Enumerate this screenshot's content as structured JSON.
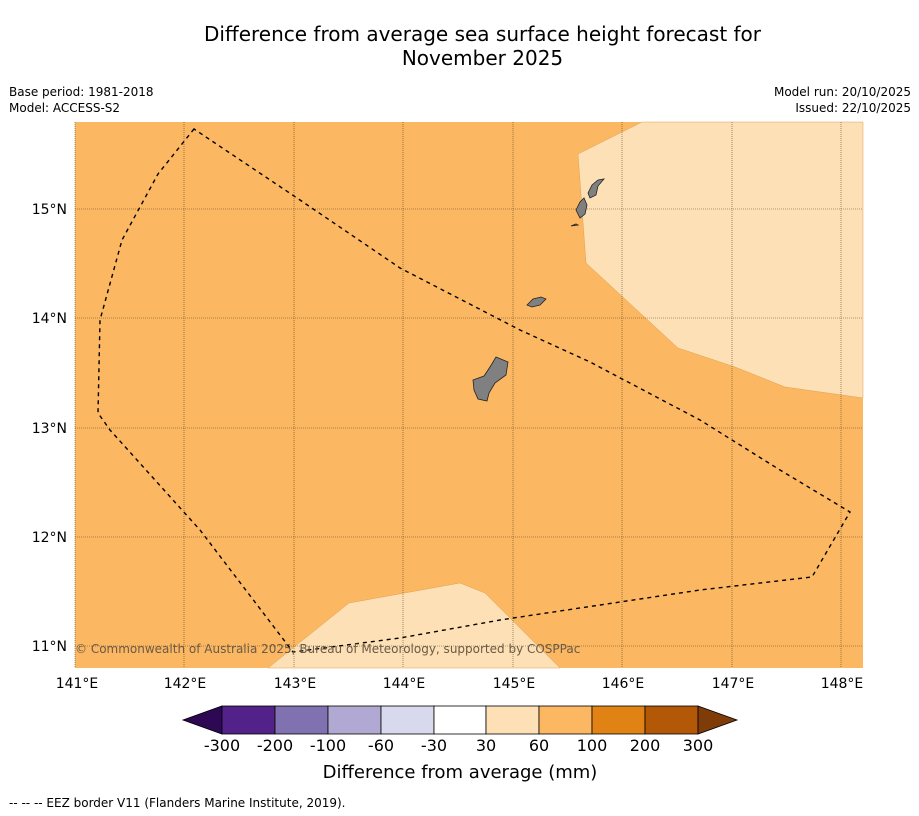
{
  "title_line1": "Difference from average sea surface height forecast for",
  "title_line2": "November 2025",
  "meta": {
    "base_period": "Base period: 1981-2018",
    "model": "Model: ACCESS-S2",
    "model_run": "Model run: 20/10/2025",
    "issued": "Issued: 22/10/2025"
  },
  "map": {
    "lon_labels": [
      "141°E",
      "142°E",
      "143°E",
      "144°E",
      "145°E",
      "146°E",
      "147°E",
      "148°E"
    ],
    "lat_labels": [
      "15°N",
      "14°N",
      "13°N",
      "12°N",
      "11°N"
    ],
    "credit": "© Commonwealth of Australia 2025, Bureau of Meteorology, supported by COSPPac",
    "colors": {
      "band_100_200": "#fbb762",
      "band_30_60": "#fde0b5",
      "land": "#808080"
    }
  },
  "colorbar": {
    "title": "Difference from average (mm)",
    "tick_labels": [
      "-300",
      "-200",
      "-100",
      "-60",
      "-30",
      "30",
      "60",
      "100",
      "200",
      "300"
    ],
    "colors": [
      "#2e0854",
      "#532289",
      "#8072b0",
      "#b1a9d3",
      "#d8d9ed",
      "#ffffff",
      "#fde0b5",
      "#fbb762",
      "#e08214",
      "#b35806",
      "#7f3b08"
    ]
  },
  "footer": {
    "legend": "--  --  -- EEZ border V11 (Flanders Marine Institute, 2019)."
  }
}
